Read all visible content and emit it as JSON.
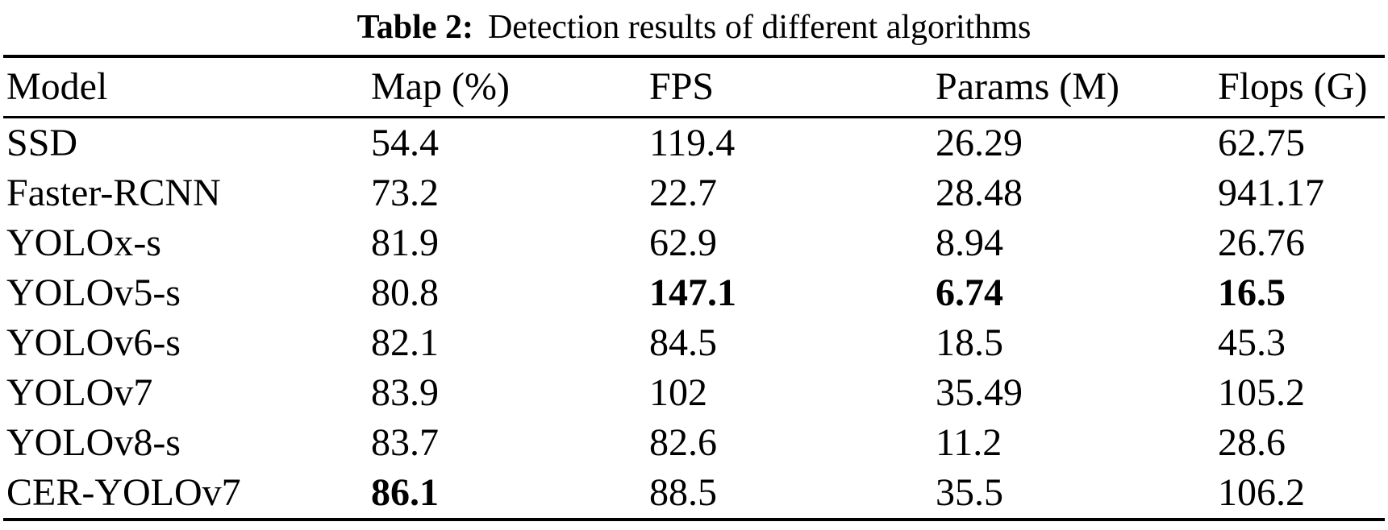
{
  "page": {
    "background": "#ffffff",
    "text_color": "#000000"
  },
  "title": {
    "label": "Table 2:",
    "text": "Detection results of different algorithms"
  },
  "table": {
    "columns": [
      {
        "key": "model",
        "label": "Model"
      },
      {
        "key": "map",
        "label": "Map (%)"
      },
      {
        "key": "fps",
        "label": "FPS"
      },
      {
        "key": "params",
        "label": "Params (M)"
      },
      {
        "key": "flops",
        "label": "Flops (G)"
      }
    ],
    "rows": [
      {
        "model": "SSD",
        "map": "54.4",
        "fps": "119.4",
        "params": "26.29",
        "flops": "62.75",
        "bold": []
      },
      {
        "model": "Faster-RCNN",
        "map": "73.2",
        "fps": "22.7",
        "params": "28.48",
        "flops": "941.17",
        "bold": []
      },
      {
        "model": "YOLOx-s",
        "map": "81.9",
        "fps": "62.9",
        "params": "8.94",
        "flops": "26.76",
        "bold": []
      },
      {
        "model": "YOLOv5-s",
        "map": "80.8",
        "fps": "147.1",
        "params": "6.74",
        "flops": "16.5",
        "bold": [
          "fps",
          "params",
          "flops"
        ]
      },
      {
        "model": "YOLOv6-s",
        "map": "82.1",
        "fps": "84.5",
        "params": "18.5",
        "flops": "45.3",
        "bold": []
      },
      {
        "model": "YOLOv7",
        "map": "83.9",
        "fps": "102",
        "params": "35.49",
        "flops": "105.2",
        "bold": []
      },
      {
        "model": "YOLOv8-s",
        "map": "83.7",
        "fps": "82.6",
        "params": "11.2",
        "flops": "28.6",
        "bold": []
      },
      {
        "model": "CER-YOLOv7",
        "map": "86.1",
        "fps": "88.5",
        "params": "35.5",
        "flops": "106.2",
        "bold": [
          "map"
        ]
      }
    ]
  }
}
